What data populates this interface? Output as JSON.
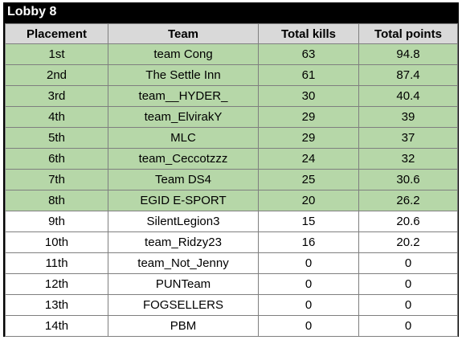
{
  "title": "Lobby 8",
  "colors": {
    "frame": "#000000",
    "header_bg": "#d9d9d9",
    "qualified_bg": "#b6d7a8",
    "default_bg": "#ffffff",
    "grid": "#7f7f7f"
  },
  "columns": [
    "Placement",
    "Team",
    "Total kills",
    "Total points"
  ],
  "rows": [
    {
      "placement": "1st",
      "team": "team Cong",
      "kills": "63",
      "points": "94.8",
      "highlight": true
    },
    {
      "placement": "2nd",
      "team": "The Settle Inn",
      "kills": "61",
      "points": "87.4",
      "highlight": true
    },
    {
      "placement": "3rd",
      "team": "team__HYDER_",
      "kills": "30",
      "points": "40.4",
      "highlight": true
    },
    {
      "placement": "4th",
      "team": "team_ElvirakY",
      "kills": "29",
      "points": "39",
      "highlight": true
    },
    {
      "placement": "5th",
      "team": "MLC",
      "kills": "29",
      "points": "37",
      "highlight": true
    },
    {
      "placement": "6th",
      "team": "team_Ceccotzzz",
      "kills": "24",
      "points": "32",
      "highlight": true
    },
    {
      "placement": "7th",
      "team": "Team DS4",
      "kills": "25",
      "points": "30.6",
      "highlight": true
    },
    {
      "placement": "8th",
      "team": "EGID E-SPORT",
      "kills": "20",
      "points": "26.2",
      "highlight": true
    },
    {
      "placement": "9th",
      "team": "SilentLegion3",
      "kills": "15",
      "points": "20.6",
      "highlight": false
    },
    {
      "placement": "10th",
      "team": "team_Ridzy23",
      "kills": "16",
      "points": "20.2",
      "highlight": false
    },
    {
      "placement": "11th",
      "team": "team_Not_Jenny",
      "kills": "0",
      "points": "0",
      "highlight": false
    },
    {
      "placement": "12th",
      "team": "PUNTeam",
      "kills": "0",
      "points": "0",
      "highlight": false
    },
    {
      "placement": "13th",
      "team": "FOGSELLERS",
      "kills": "0",
      "points": "0",
      "highlight": false
    },
    {
      "placement": "14th",
      "team": "PBM",
      "kills": "0",
      "points": "0",
      "highlight": false
    }
  ]
}
